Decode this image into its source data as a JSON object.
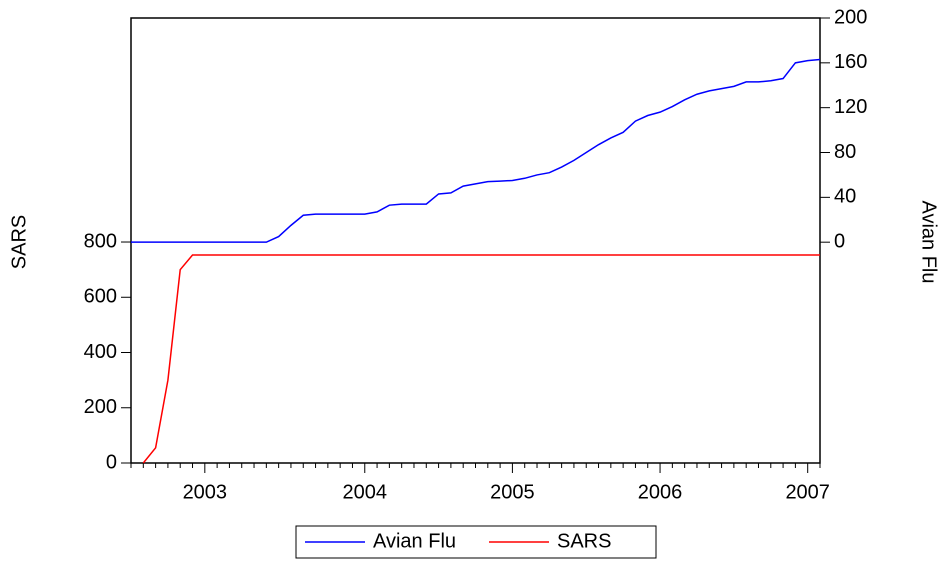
{
  "chart_data": {
    "type": "line",
    "y_label": "SARS",
    "y2_label": "Avian Flu",
    "categories": [
      null,
      null,
      null,
      null,
      null,
      null,
      "2003",
      null,
      null,
      null,
      null,
      null,
      null,
      null,
      null,
      null,
      null,
      null,
      null,
      "2004",
      null,
      null,
      null,
      null,
      null,
      null,
      null,
      null,
      null,
      null,
      null,
      "2005",
      null,
      null,
      null,
      null,
      null,
      null,
      null,
      null,
      null,
      null,
      null,
      "2006",
      null,
      null,
      null,
      null,
      null,
      null,
      null,
      null,
      null,
      null,
      null,
      "2007",
      null
    ],
    "series": [
      {
        "name": "Avian Flu",
        "color": "#0000ff",
        "axis": "y2",
        "values": [
          0,
          0,
          0,
          0,
          0,
          0,
          0,
          0,
          0,
          0,
          0,
          0,
          5,
          15,
          24,
          25,
          25,
          25,
          25,
          25,
          27,
          33,
          34,
          34,
          34,
          43,
          44,
          50,
          52,
          54,
          54.5,
          55,
          57,
          60,
          62,
          67,
          73,
          80,
          87,
          93,
          98,
          108,
          113,
          116,
          121,
          127,
          132,
          135,
          137,
          139,
          143,
          143,
          144,
          146,
          160,
          162,
          163
        ]
      },
      {
        "name": "SARS",
        "color": "#ff0000",
        "values": [
          null,
          0,
          55,
          300,
          700,
          753,
          753,
          753,
          753,
          753,
          753,
          753,
          753,
          753,
          753,
          753,
          753,
          753,
          753,
          753,
          753,
          753,
          753,
          753,
          753,
          753,
          753,
          753,
          753,
          753,
          753,
          753,
          753,
          753,
          753,
          753,
          753,
          753,
          753,
          753,
          753,
          753,
          753,
          753,
          753,
          753,
          753,
          753,
          753,
          753,
          753,
          753,
          753,
          753,
          753,
          753,
          753
        ]
      }
    ],
    "ylim": [
      0,
      1611
    ],
    "yticks": [
      0,
      200,
      400,
      600,
      800
    ],
    "y2lim": [
      -197,
      200
    ],
    "y2ticks": [
      0,
      40,
      80,
      120,
      160,
      200
    ],
    "legend": "bottom"
  }
}
